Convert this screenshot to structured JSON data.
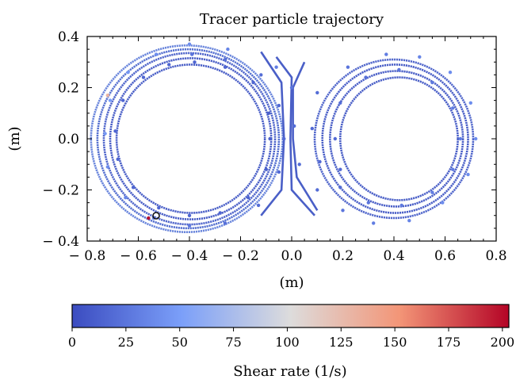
{
  "chart_data": {
    "type": "scatter",
    "title": "Tracer particle trajectory",
    "xlabel": "(m)",
    "ylabel": "(m)",
    "xlim": [
      -0.8,
      0.8
    ],
    "ylim": [
      -0.4,
      0.4
    ],
    "xticks": [
      "− 0.8",
      "− 0.6",
      "− 0.4",
      "− 0.2",
      "0.0",
      "0.2",
      "0.4",
      "0.6",
      "0.8"
    ],
    "yticks": [
      "0.4",
      "0.2",
      "0.0",
      "− 0.2",
      "− 0.4"
    ],
    "grid": false,
    "colorbar": {
      "label": "Shear rate (1/s)",
      "range": [
        0,
        203
      ],
      "ticks": [
        "0",
        "25",
        "50",
        "75",
        "100",
        "125",
        "150",
        "175",
        "200"
      ],
      "colormap": "coolwarm"
    },
    "series": [
      {
        "description_points": "trajectory sample points (x, y, shear_rate)",
        "points": [
          [
            -0.38,
            0.3,
            15
          ],
          [
            -0.26,
            0.28,
            15
          ],
          [
            -0.15,
            0.22,
            15
          ],
          [
            -0.09,
            0.1,
            12
          ],
          [
            -0.085,
            0.0,
            12
          ],
          [
            -0.1,
            -0.12,
            12
          ],
          [
            -0.17,
            -0.23,
            14
          ],
          [
            -0.28,
            -0.29,
            15
          ],
          [
            -0.4,
            -0.3,
            15
          ],
          [
            -0.52,
            -0.27,
            15
          ],
          [
            -0.62,
            -0.19,
            16
          ],
          [
            -0.68,
            -0.08,
            16
          ],
          [
            -0.69,
            0.03,
            16
          ],
          [
            -0.66,
            0.15,
            16
          ],
          [
            -0.58,
            0.24,
            16
          ],
          [
            -0.48,
            0.29,
            15
          ],
          [
            -0.39,
            0.33,
            25
          ],
          [
            -0.26,
            0.31,
            22
          ],
          [
            -0.12,
            0.25,
            20
          ],
          [
            -0.05,
            0.13,
            18
          ],
          [
            -0.03,
            0.0,
            18
          ],
          [
            -0.05,
            -0.13,
            18
          ],
          [
            -0.13,
            -0.26,
            20
          ],
          [
            -0.26,
            -0.33,
            22
          ],
          [
            -0.4,
            -0.34,
            25
          ],
          [
            -0.54,
            -0.31,
            30
          ],
          [
            -0.65,
            -0.23,
            35
          ],
          [
            -0.72,
            -0.11,
            40
          ],
          [
            -0.73,
            0.02,
            45
          ],
          [
            -0.71,
            0.15,
            50
          ],
          [
            -0.64,
            0.26,
            45
          ],
          [
            -0.53,
            0.33,
            40
          ],
          [
            -0.4,
            0.37,
            40
          ],
          [
            -0.25,
            0.35,
            35
          ],
          [
            -0.06,
            0.28,
            30
          ],
          [
            0.0,
            0.2,
            25
          ],
          [
            0.01,
            0.05,
            20
          ],
          [
            0.03,
            -0.1,
            20
          ],
          [
            0.1,
            -0.2,
            20
          ],
          [
            0.2,
            -0.28,
            25
          ],
          [
            0.32,
            -0.33,
            30
          ],
          [
            0.46,
            -0.32,
            35
          ],
          [
            0.59,
            -0.25,
            40
          ],
          [
            0.69,
            -0.14,
            40
          ],
          [
            0.72,
            0.0,
            40
          ],
          [
            0.7,
            0.14,
            40
          ],
          [
            0.62,
            0.26,
            40
          ],
          [
            0.5,
            0.32,
            35
          ],
          [
            0.37,
            0.33,
            30
          ],
          [
            0.22,
            0.28,
            25
          ],
          [
            0.1,
            0.18,
            20
          ],
          [
            0.08,
            0.04,
            18
          ],
          [
            0.11,
            -0.09,
            18
          ],
          [
            0.19,
            -0.19,
            20
          ],
          [
            0.3,
            -0.25,
            25
          ],
          [
            0.43,
            -0.26,
            28
          ],
          [
            0.55,
            -0.21,
            30
          ],
          [
            0.63,
            -0.12,
            30
          ],
          [
            0.66,
            0.0,
            30
          ],
          [
            0.63,
            0.12,
            30
          ],
          [
            0.55,
            0.22,
            28
          ],
          [
            0.42,
            0.27,
            25
          ],
          [
            0.29,
            0.24,
            22
          ],
          [
            0.19,
            0.14,
            20
          ],
          [
            0.17,
            0.0,
            18
          ],
          [
            0.19,
            -0.12,
            18
          ],
          [
            -0.72,
            0.17,
            130
          ],
          [
            -0.56,
            -0.31,
            200
          ]
        ]
      }
    ],
    "annotation": "start marker (open circle) at about (-0.53, -0.30)"
  }
}
